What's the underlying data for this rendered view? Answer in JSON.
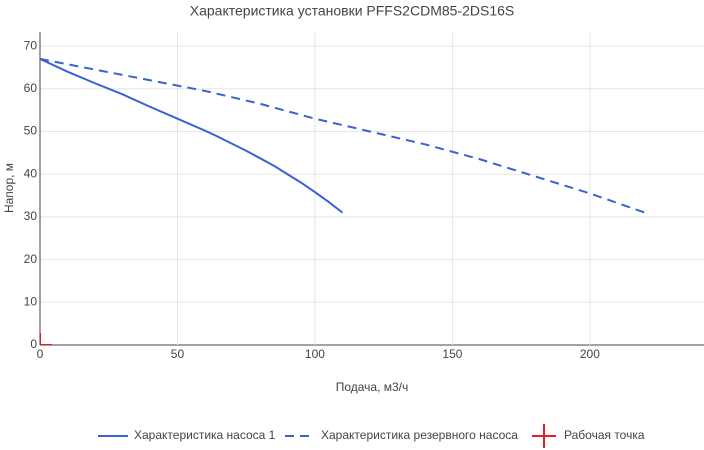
{
  "chart_data": {
    "type": "line",
    "title": "Характеристика установки PFFS2CDM85-2DS16S",
    "x_label": "Подача, м3/ч",
    "y_label": "Напор, м",
    "xlim": [
      0,
      241.5
    ],
    "ylim": [
      0,
      73.3
    ],
    "xticks": [
      0,
      50,
      100,
      150,
      200
    ],
    "yticks": [
      0,
      10,
      20,
      30,
      40,
      50,
      60,
      70
    ],
    "grid": true,
    "legend": "bottom",
    "series": [
      {
        "name": "Характеристика насоса 1",
        "color": "#3a63d1",
        "dash": "solid",
        "mode": "lines",
        "x": [
          0,
          10,
          20,
          30,
          40,
          50,
          60,
          64,
          75,
          85,
          95,
          100,
          105,
          110
        ],
        "values": [
          67,
          64,
          61.3,
          58.7,
          55.8,
          53,
          50.2,
          49,
          45.5,
          42,
          38,
          35.8,
          33.5,
          31
        ]
      },
      {
        "name": "Характеристика резервного насоса",
        "color": "#3a63d1",
        "dash": "dash",
        "mode": "lines",
        "x": [
          0,
          20,
          40,
          60,
          80,
          100,
          120,
          140,
          160,
          180,
          200,
          220
        ],
        "values": [
          67,
          64.5,
          62,
          59.5,
          56.5,
          53,
          50,
          47,
          43.5,
          39.5,
          35.5,
          31
        ]
      },
      {
        "name": "Рабочая точка",
        "color": "#e8181c",
        "mode": "markers",
        "symbol": "cross",
        "x": [
          0
        ],
        "values": [
          0
        ]
      }
    ]
  }
}
